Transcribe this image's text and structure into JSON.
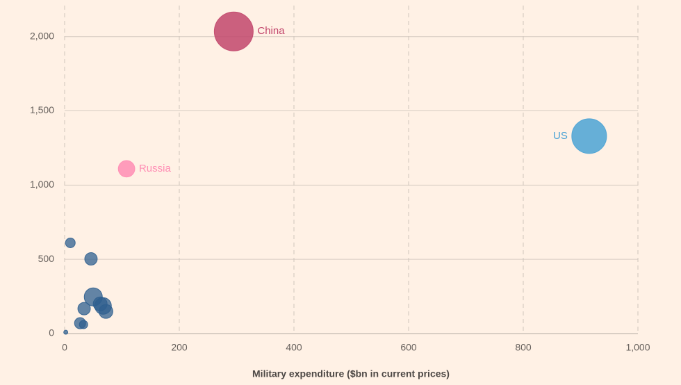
{
  "chart_data": {
    "type": "scatter",
    "x_label": "Military expenditure ($bn in current prices)",
    "xlim": [
      0,
      1000
    ],
    "xticks": [
      0,
      200,
      400,
      600,
      800,
      {
        "value": 1000,
        "label": "1,000"
      }
    ],
    "ylim": [
      0,
      2200
    ],
    "yticks": [
      0,
      500,
      {
        "value": 1000,
        "label": "1,000"
      },
      {
        "value": 1500,
        "label": "1,500"
      },
      {
        "value": 2000,
        "label": "2,000"
      }
    ],
    "grid": true,
    "series": [
      {
        "name": "China",
        "color": "#c2466c",
        "x": [
          295
        ],
        "values": [
          2035
        ],
        "sizes": [
          100
        ]
      },
      {
        "name": "US",
        "color": "#4ba3d5",
        "x": [
          915
        ],
        "values": [
          1330
        ],
        "sizes": [
          80
        ]
      },
      {
        "name": "Russia",
        "color": "#ff8db4",
        "x": [
          108
        ],
        "values": [
          1110
        ],
        "sizes": [
          18
        ]
      },
      {
        "color": "#2f5f8f",
        "x": [
          10,
          46,
          50,
          62,
          67,
          72,
          34,
          27,
          33,
          2
        ],
        "values": [
          611,
          503,
          247,
          200,
          186,
          149,
          168,
          70,
          61,
          9
        ],
        "sizes": [
          6.2,
          10.3,
          21.6,
          12.8,
          18.4,
          12.8,
          10.3,
          8.2,
          4.6,
          1.1
        ]
      }
    ]
  }
}
